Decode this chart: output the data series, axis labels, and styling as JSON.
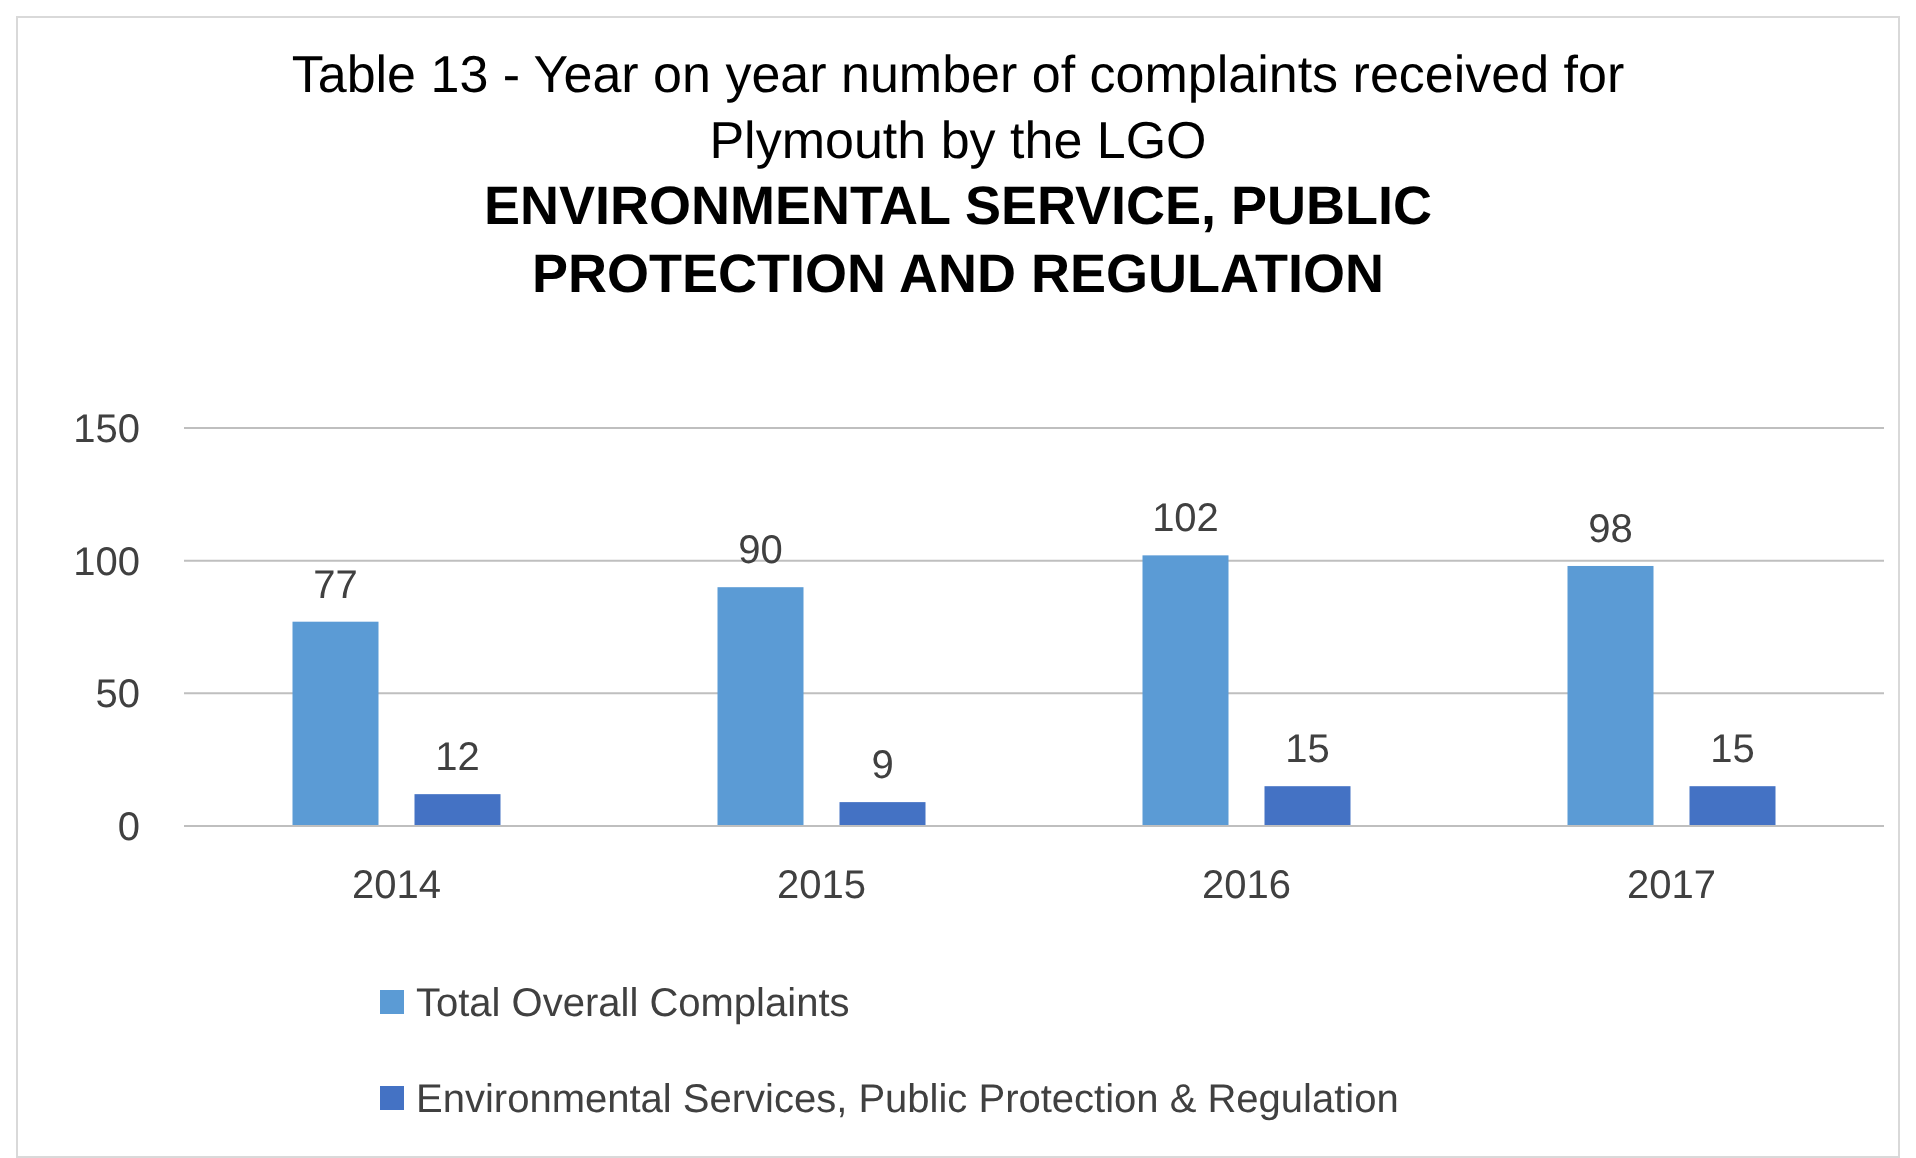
{
  "chart_data": {
    "type": "bar",
    "title": "Table 13 - Year on year number of complaints received for Plymouth by the LGO",
    "subtitle": "ENVIRONMENTAL SERVICE, PUBLIC PROTECTION AND REGULATION",
    "categories": [
      "2014",
      "2015",
      "2016",
      "2017"
    ],
    "series": [
      {
        "name": "Total Overall Complaints",
        "color": "#5b9bd5",
        "values": [
          77,
          90,
          102,
          98
        ]
      },
      {
        "name": "Environmental Services, Public Protection & Regulation",
        "color": "#4472c4",
        "values": [
          12,
          9,
          15,
          15
        ]
      }
    ],
    "ylim": [
      0,
      150
    ],
    "yticks": [
      0,
      50,
      100,
      150
    ],
    "grid": "y",
    "legend": "bottom",
    "data_labels": true
  }
}
